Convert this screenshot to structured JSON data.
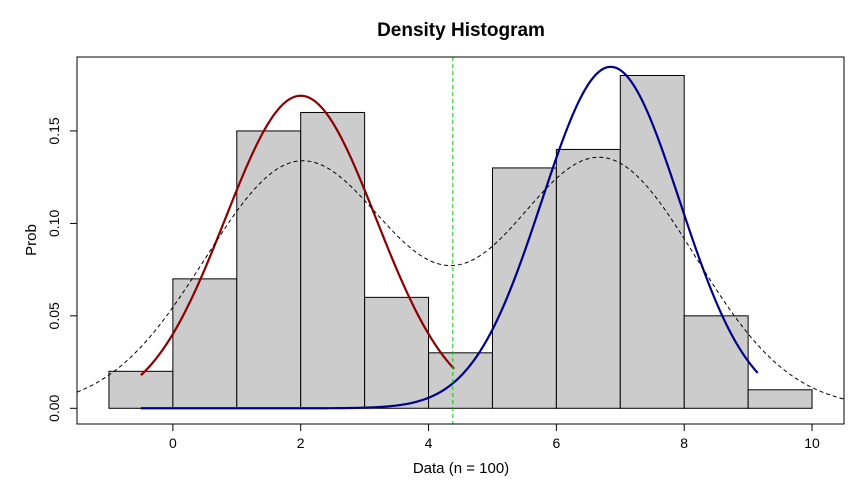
{
  "chart_data": {
    "type": "bar",
    "title": "Density Histogram",
    "xlabel": "Data (n = 100)",
    "ylabel": "Prob",
    "xlim": [
      -1.5,
      10.5
    ],
    "ylim": [
      -0.0085,
      0.19
    ],
    "x_ticks": [
      0,
      2,
      4,
      6,
      8,
      10
    ],
    "y_ticks": [
      0.0,
      0.05,
      0.1,
      0.15
    ],
    "y_tick_labels": [
      "0.00",
      "0.05",
      "0.10",
      "0.15"
    ],
    "bins": [
      {
        "x0": -1,
        "x1": 0,
        "density": 0.02
      },
      {
        "x0": 0,
        "x1": 1,
        "density": 0.07
      },
      {
        "x0": 1,
        "x1": 2,
        "density": 0.15
      },
      {
        "x0": 2,
        "x1": 3,
        "density": 0.16
      },
      {
        "x0": 3,
        "x1": 4,
        "density": 0.06
      },
      {
        "x0": 4,
        "x1": 5,
        "density": 0.03
      },
      {
        "x0": 5,
        "x1": 6,
        "density": 0.13
      },
      {
        "x0": 6,
        "x1": 7,
        "density": 0.14
      },
      {
        "x0": 7,
        "x1": 8,
        "density": 0.18
      },
      {
        "x0": 8,
        "x1": 9,
        "density": 0.05
      },
      {
        "x0": 9,
        "x1": 10,
        "density": 0.01
      }
    ],
    "curves": [
      {
        "kind": "normal",
        "mean": 2.0,
        "sd": 1.18,
        "weight": 0.5,
        "x_range": [
          -0.5,
          4.4
        ],
        "color": "#8b0000",
        "style": "solid"
      },
      {
        "kind": "normal",
        "mean": 6.85,
        "sd": 1.08,
        "weight": 0.5,
        "x_range": [
          -0.5,
          9.15
        ],
        "color": "#00008b",
        "style": "solid"
      },
      {
        "kind": "mixture",
        "components": [
          {
            "mean": 2.0,
            "sd": 1.5,
            "weight": 0.5
          },
          {
            "mean": 6.7,
            "sd": 1.48,
            "weight": 0.5
          }
        ],
        "x_range": [
          -1.5,
          10.5
        ],
        "color": "#000000",
        "style": "dashed"
      }
    ],
    "vline": {
      "x": 4.38,
      "color": "#00cc00",
      "style": "dashed"
    },
    "bar_fill": "#cccccc",
    "bar_stroke": "#000000",
    "grid": false,
    "legend": "none"
  }
}
